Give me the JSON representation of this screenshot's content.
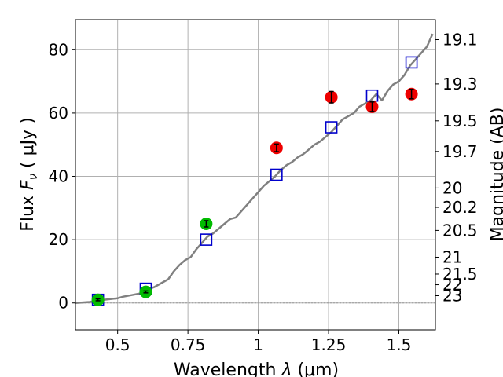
{
  "chart_data": {
    "type": "scatter",
    "xlabel_main": "Wavelength",
    "xlabel_symbol": "λ",
    "xlabel_unit": "(μm)",
    "ylabel_main": "Flux",
    "ylabel_symbol": "F",
    "ylabel_subscript": "ν",
    "ylabel_unit": "( μJy )",
    "y2label": "Magnitude (AB)",
    "xlim": [
      0.35,
      1.63
    ],
    "ylim": [
      -8.5,
      89.5
    ],
    "grid": true,
    "xticks": [
      0.5,
      0.75,
      1.0,
      1.25,
      1.5
    ],
    "xtick_labels": [
      "0.5",
      "0.75",
      "1",
      "1.25",
      "1.5"
    ],
    "yticks": [
      0,
      20,
      40,
      60,
      80
    ],
    "ytick_labels": [
      "0",
      "20",
      "40",
      "60",
      "80"
    ],
    "mag_ticks": [
      19.1,
      19.3,
      19.5,
      19.7,
      20,
      20.2,
      20.5,
      21,
      21.5,
      22,
      23
    ],
    "mag_tick_labels": [
      "19.1",
      "19.3",
      "19.5",
      "19.7",
      "20",
      "20.2",
      "20.5",
      "21",
      "21.5",
      "22",
      "23"
    ],
    "mag_zero_flux": 3631000000,
    "colors": {
      "spectrum": "#808080",
      "model_points": "#0000cc",
      "observed_green": "#00bb00",
      "observed_red": "#ee0000",
      "grid": "#b0b0b0"
    },
    "spectrum": {
      "x": [
        0.35,
        0.4,
        0.43,
        0.45,
        0.48,
        0.5,
        0.52,
        0.55,
        0.58,
        0.6,
        0.63,
        0.65,
        0.68,
        0.7,
        0.72,
        0.74,
        0.76,
        0.78,
        0.8,
        0.82,
        0.84,
        0.86,
        0.88,
        0.9,
        0.92,
        0.94,
        0.96,
        0.98,
        1.0,
        1.02,
        1.04,
        1.06,
        1.08,
        1.1,
        1.12,
        1.14,
        1.16,
        1.18,
        1.2,
        1.22,
        1.24,
        1.26,
        1.28,
        1.3,
        1.32,
        1.34,
        1.36,
        1.38,
        1.4,
        1.42,
        1.44,
        1.46,
        1.48,
        1.5,
        1.52,
        1.54,
        1.56,
        1.58,
        1.6,
        1.62
      ],
      "y": [
        0,
        0.3,
        0.8,
        1.0,
        1.3,
        1.5,
        2.0,
        2.5,
        3.0,
        4.0,
        5.0,
        6.0,
        7.5,
        10.0,
        12.0,
        13.5,
        14.5,
        17.0,
        19.0,
        21.0,
        22.0,
        23.5,
        25.0,
        26.5,
        27.0,
        29.0,
        31.0,
        33.0,
        35.0,
        37.0,
        38.5,
        40.0,
        42.0,
        43.5,
        44.5,
        46.0,
        47.0,
        48.5,
        50.0,
        51.0,
        52.5,
        54.0,
        56.0,
        58.0,
        59.0,
        60.0,
        62.0,
        63.0,
        64.0,
        66.0,
        64.0,
        67.0,
        69.0,
        70.0,
        72.0,
        75.0,
        77.0,
        79.0,
        81.0,
        85.0
      ]
    },
    "series": [
      {
        "marker": "square",
        "x": [
          0.43,
          0.6,
          0.815,
          1.065,
          1.26,
          1.405,
          1.545
        ],
        "y": [
          1.0,
          4.5,
          20.0,
          40.5,
          55.5,
          65.5,
          76.0
        ]
      },
      {
        "marker": "circle",
        "x": [
          0.43,
          0.6,
          0.815
        ],
        "y": [
          1.0,
          3.5,
          25.0
        ],
        "err": [
          0.3,
          0.3,
          1.0
        ]
      },
      {
        "marker": "circle",
        "x": [
          1.065,
          1.26,
          1.405,
          1.545
        ],
        "y": [
          49.0,
          65.0,
          62.0,
          66.0
        ],
        "err": [
          1.2,
          1.8,
          1.5,
          1.5
        ]
      }
    ]
  }
}
